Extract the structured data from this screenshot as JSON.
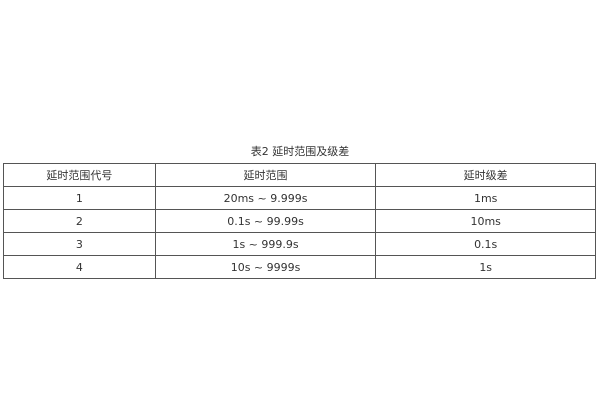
{
  "caption": "表2  延时范围及级差",
  "table": {
    "headers": [
      "延时范围代号",
      "延时范围",
      "延时级差"
    ],
    "rows": [
      [
        "1",
        "20ms ~ 9.999s",
        "1ms"
      ],
      [
        "2",
        "0.1s ~ 99.99s",
        "10ms"
      ],
      [
        "3",
        "1s ~ 999.9s",
        "0.1s"
      ],
      [
        "4",
        "10s ~ 9999s",
        "1s"
      ]
    ]
  }
}
